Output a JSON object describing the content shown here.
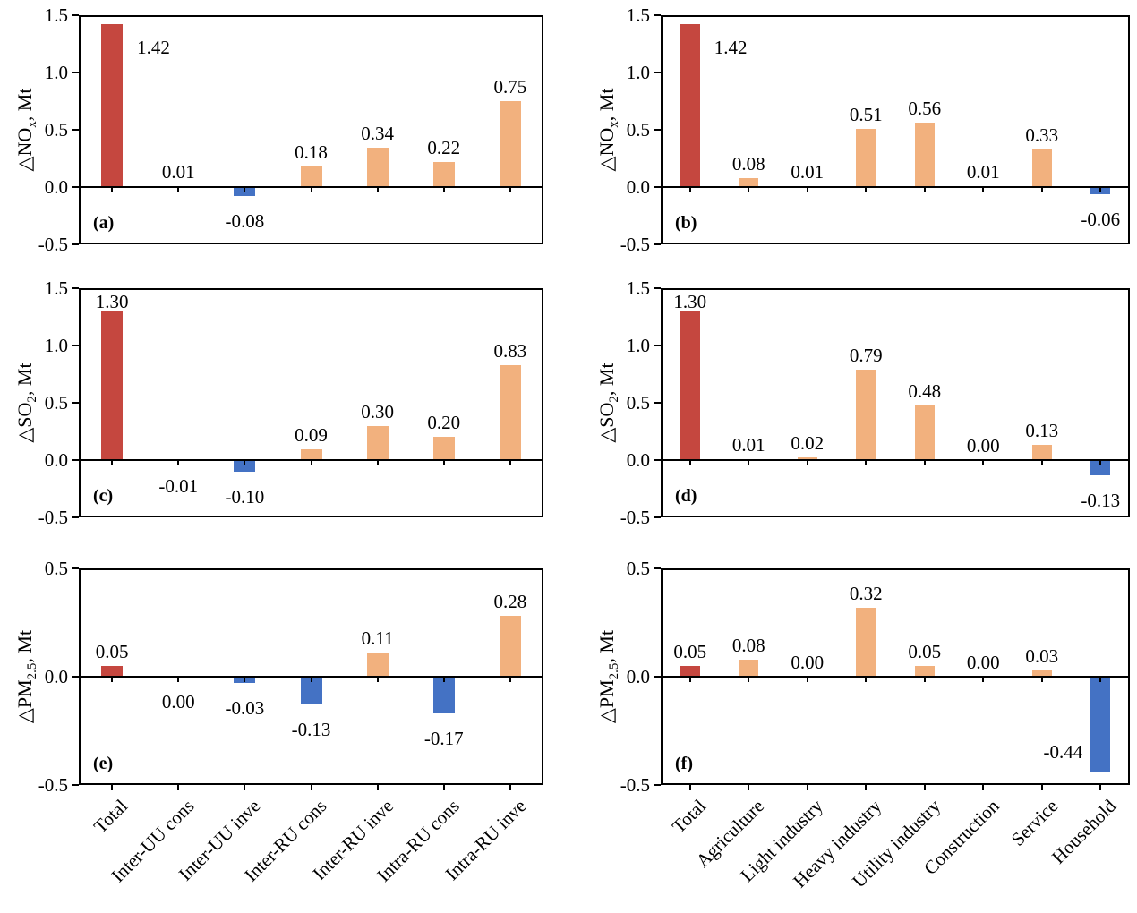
{
  "figure": {
    "background": "#ffffff",
    "colors": {
      "first_bar": "#c5473f",
      "positive_bar": "#f2b17e",
      "negative_bar": "#4472c4",
      "axis": "#000000"
    }
  },
  "chart_data": [
    {
      "id": "a",
      "type": "bar",
      "panel_label": "(a)",
      "col": "left",
      "row": 0,
      "show_x_labels": false,
      "ylabel": {
        "pre": "△NO",
        "sub": "x",
        "post": ", Mt"
      },
      "ylim": [
        -0.5,
        1.5
      ],
      "yticks": [
        "1.5",
        "1.0",
        "0.5",
        "0.0",
        "-0.5"
      ],
      "categories": [
        "Total",
        "Inter-UU cons",
        "Inter-UU inve",
        "Inter-RU cons",
        "Inter-RU inve",
        "Intra-RU cons",
        "Intra-RU inve"
      ],
      "bars": [
        {
          "value": 1.42,
          "label": "1.42",
          "side": "right"
        },
        {
          "value": 0.01,
          "label": "0.01"
        },
        {
          "value": -0.08,
          "label": "-0.08"
        },
        {
          "value": 0.18,
          "label": "0.18"
        },
        {
          "value": 0.34,
          "label": "0.34"
        },
        {
          "value": 0.22,
          "label": "0.22"
        },
        {
          "value": 0.75,
          "label": "0.75"
        }
      ]
    },
    {
      "id": "b",
      "type": "bar",
      "panel_label": "(b)",
      "col": "right",
      "row": 0,
      "show_x_labels": false,
      "ylabel": {
        "pre": "△NO",
        "sub": "x",
        "post": ", Mt"
      },
      "ylim": [
        -0.5,
        1.5
      ],
      "yticks": [
        "1.5",
        "1.0",
        "0.5",
        "0.0",
        "-0.5"
      ],
      "categories": [
        "Total",
        "Agriculture",
        "Light industry",
        "Heavy industry",
        "Utility industry",
        "Construction",
        "Service",
        "Household"
      ],
      "bars": [
        {
          "value": 1.42,
          "label": "1.42",
          "side": "right"
        },
        {
          "value": 0.08,
          "label": "0.08"
        },
        {
          "value": 0.01,
          "label": "0.01"
        },
        {
          "value": 0.51,
          "label": "0.51"
        },
        {
          "value": 0.56,
          "label": "0.56"
        },
        {
          "value": 0.01,
          "label": "0.01"
        },
        {
          "value": 0.33,
          "label": "0.33"
        },
        {
          "value": -0.06,
          "label": "-0.06"
        }
      ]
    },
    {
      "id": "c",
      "type": "bar",
      "panel_label": "(c)",
      "col": "left",
      "row": 1,
      "show_x_labels": false,
      "ylabel": {
        "pre": "△SO",
        "sub": "2",
        "post": ", Mt"
      },
      "ylim": [
        -0.5,
        1.5
      ],
      "yticks": [
        "1.5",
        "1.0",
        "0.5",
        "0.0",
        "-0.5"
      ],
      "categories": [
        "Total",
        "Inter-UU cons",
        "Inter-UU inve",
        "Inter-RU cons",
        "Inter-RU inve",
        "Intra-RU cons",
        "Intra-RU inve"
      ],
      "bars": [
        {
          "value": 1.3,
          "label": "1.30"
        },
        {
          "value": -0.01,
          "label": "-0.01"
        },
        {
          "value": -0.1,
          "label": "-0.10"
        },
        {
          "value": 0.09,
          "label": "0.09"
        },
        {
          "value": 0.3,
          "label": "0.30"
        },
        {
          "value": 0.2,
          "label": "0.20"
        },
        {
          "value": 0.83,
          "label": "0.83"
        }
      ]
    },
    {
      "id": "d",
      "type": "bar",
      "panel_label": "(d)",
      "col": "right",
      "row": 1,
      "show_x_labels": false,
      "ylabel": {
        "pre": "△SO",
        "sub": "2",
        "post": ", Mt"
      },
      "ylim": [
        -0.5,
        1.5
      ],
      "yticks": [
        "1.5",
        "1.0",
        "0.5",
        "0.0",
        "-0.5"
      ],
      "categories": [
        "Total",
        "Agriculture",
        "Light industry",
        "Heavy industry",
        "Utility industry",
        "Construction",
        "Service",
        "Household"
      ],
      "bars": [
        {
          "value": 1.3,
          "label": "1.30"
        },
        {
          "value": 0.01,
          "label": "0.01"
        },
        {
          "value": 0.02,
          "label": "0.02"
        },
        {
          "value": 0.79,
          "label": "0.79"
        },
        {
          "value": 0.48,
          "label": "0.48"
        },
        {
          "value": 0.0,
          "label": "0.00"
        },
        {
          "value": 0.13,
          "label": "0.13"
        },
        {
          "value": -0.13,
          "label": "-0.13"
        }
      ]
    },
    {
      "id": "e",
      "type": "bar",
      "panel_label": "(e)",
      "col": "left",
      "row": 2,
      "show_x_labels": true,
      "ylabel": {
        "pre": "△PM",
        "sub": "2.5",
        "post": ", Mt"
      },
      "ylim": [
        -0.5,
        0.5
      ],
      "yticks": [
        "0.5",
        "0.0",
        "-0.5"
      ],
      "categories": [
        "Total",
        "Inter-UU cons",
        "Inter-UU inve",
        "Inter-RU cons",
        "Inter-RU inve",
        "Intra-RU cons",
        "Intra-RU inve"
      ],
      "bars": [
        {
          "value": 0.05,
          "label": "0.05"
        },
        {
          "value": 0.0,
          "label": "0.00",
          "side": "below"
        },
        {
          "value": -0.03,
          "label": "-0.03"
        },
        {
          "value": -0.13,
          "label": "-0.13"
        },
        {
          "value": 0.11,
          "label": "0.11"
        },
        {
          "value": -0.17,
          "label": "-0.17"
        },
        {
          "value": 0.28,
          "label": "0.28"
        }
      ]
    },
    {
      "id": "f",
      "type": "bar",
      "panel_label": "(f)",
      "col": "right",
      "row": 2,
      "show_x_labels": true,
      "ylabel": {
        "pre": "△PM",
        "sub": "2.5",
        "post": ", Mt"
      },
      "ylim": [
        -0.5,
        0.5
      ],
      "yticks": [
        "0.5",
        "0.0",
        "-0.5"
      ],
      "categories": [
        "Total",
        "Agriculture",
        "Light industry",
        "Heavy industry",
        "Utility industry",
        "Construction",
        "Service",
        "Household"
      ],
      "bars": [
        {
          "value": 0.05,
          "label": "0.05"
        },
        {
          "value": 0.08,
          "label": "0.08"
        },
        {
          "value": 0.0,
          "label": "0.00"
        },
        {
          "value": 0.32,
          "label": "0.32"
        },
        {
          "value": 0.05,
          "label": "0.05"
        },
        {
          "value": 0.0,
          "label": "0.00"
        },
        {
          "value": 0.03,
          "label": "0.03"
        },
        {
          "value": -0.44,
          "label": "-0.44",
          "side": "left"
        }
      ]
    }
  ]
}
